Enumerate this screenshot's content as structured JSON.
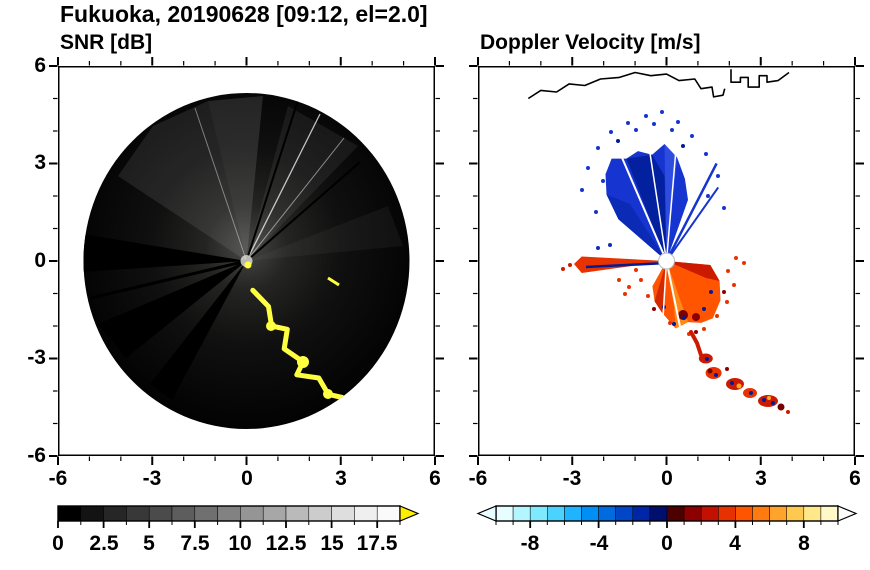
{
  "title": "Fukuoka, 20190628 [09:12, el=2.0]",
  "panels": {
    "snr": {
      "title": "SNR [dB]",
      "xtick_labels": [
        "-6",
        "-3",
        "0",
        "3",
        "6"
      ],
      "ytick_labels": [
        "6",
        "3",
        "0",
        "-3",
        "-6"
      ],
      "colorbar_labels": [
        "0",
        "2.5",
        "5",
        "7.5",
        "10",
        "12.5",
        "15",
        "17.5"
      ]
    },
    "velocity": {
      "title": "Doppler Velocity [m/s]",
      "xtick_labels": [
        "-6",
        "-3",
        "0",
        "3",
        "6"
      ],
      "colorbar_labels": [
        "-8",
        "-4",
        "0",
        "4",
        "8"
      ]
    }
  },
  "colorbars": {
    "snr": {
      "min": 0,
      "max": 18.75,
      "minor_step": 1.25,
      "major_ticks": [
        0,
        2.5,
        5,
        7.5,
        10,
        12.5,
        15,
        17.5
      ],
      "colors": [
        "#000000",
        "#131313",
        "#262626",
        "#383838",
        "#4b4b4b",
        "#5d5d5d",
        "#707070",
        "#828282",
        "#959595",
        "#a7a7a7",
        "#bababa",
        "#cccccc",
        "#dedede",
        "#efefef",
        "#fafafa"
      ],
      "right_arrow": "#ffee00"
    },
    "velocity": {
      "min": -10,
      "max": 10,
      "minor_step": 1,
      "major_ticks": [
        -8,
        -4,
        0,
        4,
        8
      ],
      "colors": [
        "#e6feff",
        "#b3f6ff",
        "#7fe9ff",
        "#4cd2ff",
        "#1fb4ff",
        "#0090f5",
        "#006ae0",
        "#0046c8",
        "#0026a8",
        "#000e6e",
        "#4c0000",
        "#8e0000",
        "#c41000",
        "#e63200",
        "#ff5400",
        "#ff7b10",
        "#ffa32b",
        "#ffc94f",
        "#ffe78a",
        "#fff8c8"
      ],
      "left_arrow": "#e8fdff",
      "right_arrow": "#ffffff"
    }
  },
  "chart_data": [
    {
      "type": "heatmap",
      "title": "SNR [dB]",
      "xlim": [
        -6,
        6
      ],
      "ylim": [
        -6,
        6
      ],
      "xticks": [
        -6,
        -3,
        0,
        3,
        6
      ],
      "yticks": [
        -6,
        -3,
        0,
        3,
        6
      ],
      "minor_tick_step": 1,
      "grid": false,
      "colorbar": {
        "range": [
          0,
          17.5
        ],
        "ticks": [
          0,
          2.5,
          5,
          7.5,
          10,
          12.5,
          15,
          17.5
        ],
        "colormap": "black-to-white grayscale with yellow overflow arrow"
      },
      "features": [
        "circular radar PPI scan disk of radius ~5.2 centered at the origin, mostly low SNR (near black)",
        "diffuse brighter haze around the radar center, strongest toward the north and northwest",
        "thin bright radial beam streaks toward north and north-northeast",
        "sharp black shadow spokes toward the west and southwest",
        "high-SNR yellow arc (>17.5 dB) snaking from (0.2,-0.9) to (3.1,-4.3) south-southeast of the radar",
        "small yellow dash near (2.7,-0.6) and a yellow spot at the radar location",
        "white coastline traced along the top of the disk from about (-4.4,5.0) to (3.9,5.8)"
      ]
    },
    {
      "type": "heatmap",
      "title": "Doppler Velocity [m/s]",
      "xlim": [
        -6,
        6
      ],
      "ylim": [
        -6,
        6
      ],
      "xticks": [
        -6,
        -3,
        0,
        3,
        6
      ],
      "yticks": [
        -6,
        -3,
        0,
        3,
        6
      ],
      "minor_tick_step": 1,
      "grid": false,
      "colorbar": {
        "range": [
          -10,
          10
        ],
        "ticks": [
          -8,
          -4,
          0,
          4,
          8
        ],
        "colormap": "cyan-blue-navy for negative velocities, dark red-orange-yellow-white for positive"
      },
      "features": [
        "fan of negative Doppler velocities (blue, about -2 to -8 m/s) north of the radar out to radius ~3.6",
        "speckled isolated blue echoes beyond the fan edge",
        "lobe of positive velocities (orange/red, about +2 to +8 m/s) south and southeast of the radar out to radius ~2.3",
        "narrow red streak due west of the radar to radius ~2.7 with embedded dark navy pixels",
        "chain of red and dark-navy echo patches trailing southeast from (0.9,-2.3) to (3.3,-4.4)",
        "white data gap (small circle) at the radar location with thin white radial beam-blockage gaps",
        "black coastline along the top from about (-4.4,5.0) to (3.9,5.8)"
      ]
    }
  ]
}
